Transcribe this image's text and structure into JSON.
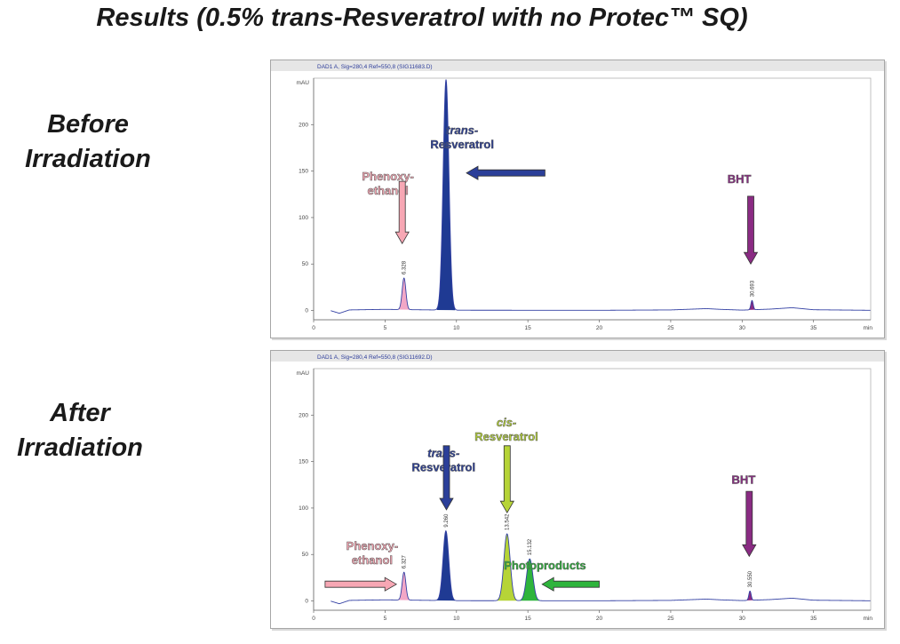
{
  "title": "Results (0.5% trans-Resveratrol with no Protec™ SQ)",
  "chart_data": [
    {
      "type": "line",
      "side_label": [
        "Before",
        "Irradiation"
      ],
      "signal_label": "DAD1 A, Sig=280,4 Ref=550,8 (SIG11683.D)",
      "ylabel": "mAU",
      "xlabel": "min",
      "xlim": [
        0,
        39
      ],
      "ylim": [
        -10,
        250
      ],
      "x_ticks": [
        0,
        5,
        10,
        15,
        20,
        25,
        30,
        35
      ],
      "y_ticks": [
        0,
        50,
        100,
        150,
        200
      ],
      "baseline": [
        [
          1.2,
          -0.2
        ],
        [
          1.8,
          -3
        ],
        [
          2.5,
          0.6
        ],
        [
          5,
          1.2
        ],
        [
          10,
          0.3
        ],
        [
          20,
          0.2
        ],
        [
          25,
          0.6
        ],
        [
          27.5,
          2
        ],
        [
          28.5,
          1.2
        ],
        [
          30,
          0.4
        ],
        [
          32,
          1.5
        ],
        [
          33.5,
          3
        ],
        [
          35,
          0.8
        ],
        [
          39,
          0.2
        ]
      ],
      "peaks": [
        {
          "rt": 6.328,
          "height": 34,
          "width": 0.13,
          "color": "#f2a7c6",
          "label": "6.328"
        },
        {
          "rt": 9.27,
          "height": 248,
          "width": 0.2,
          "color": "#1f3a93",
          "label": ""
        },
        {
          "rt": 30.693,
          "height": 10,
          "width": 0.08,
          "color": "#8a2b83",
          "label": "30.693"
        }
      ],
      "annotations": [
        {
          "lines": [
            "Phenoxy-",
            "ethanol"
          ],
          "color": "#f7a7b4",
          "arrow": "down",
          "tx": 5.2,
          "ty": 140,
          "ax": 6.2,
          "ay_from": 139,
          "ay_to": 72
        },
        {
          "lines": [
            "trans-",
            "Resveratrol"
          ],
          "italic_first": true,
          "color": "#2b3f99",
          "arrow": "left",
          "tx": 10.4,
          "ty": 190,
          "ax_from": 16.2,
          "ax_to": 10.7,
          "ay": 148
        },
        {
          "lines": [
            "BHT"
          ],
          "color": "#8a2b83",
          "arrow": "down",
          "tx": 29.8,
          "ty": 137,
          "ax": 30.6,
          "ay_from": 123,
          "ay_to": 50
        }
      ]
    },
    {
      "type": "line",
      "side_label": [
        "After",
        "Irradiation"
      ],
      "signal_label": "DAD1 A, Sig=280,4 Ref=550,8 (SIG11692.D)",
      "ylabel": "mAU",
      "xlabel": "min",
      "xlim": [
        0,
        39
      ],
      "ylim": [
        -10,
        250
      ],
      "x_ticks": [
        0,
        5,
        10,
        15,
        20,
        25,
        30,
        35
      ],
      "y_ticks": [
        0,
        50,
        100,
        150,
        200
      ],
      "baseline": [
        [
          1.2,
          -0.2
        ],
        [
          1.8,
          -3
        ],
        [
          2.5,
          0.6
        ],
        [
          5,
          1.2
        ],
        [
          10,
          0.3
        ],
        [
          20,
          0.2
        ],
        [
          25,
          0.6
        ],
        [
          27.5,
          2
        ],
        [
          28.5,
          1.2
        ],
        [
          30,
          0.4
        ],
        [
          32,
          1.5
        ],
        [
          33.5,
          3
        ],
        [
          35,
          0.8
        ],
        [
          39,
          0.2
        ]
      ],
      "peaks": [
        {
          "rt": 6.327,
          "height": 30,
          "width": 0.13,
          "color": "#f2a7c6",
          "label": "6.327"
        },
        {
          "rt": 9.26,
          "height": 75,
          "width": 0.2,
          "color": "#1f3a93",
          "label": "9.260"
        },
        {
          "rt": 13.54,
          "height": 72,
          "width": 0.22,
          "color": "#b6d437",
          "label": "13.542"
        },
        {
          "rt": 15.13,
          "height": 45,
          "width": 0.22,
          "color": "#2eb43c",
          "label": "15.132"
        },
        {
          "rt": 30.55,
          "height": 10,
          "width": 0.08,
          "color": "#8a2b83",
          "label": "30.550"
        }
      ],
      "annotations": [
        {
          "lines": [
            "Phenoxy-",
            "ethanol"
          ],
          "color": "#f7a7b4",
          "arrow": "right",
          "tx": 4.1,
          "ty": 55,
          "ax_from": 0.8,
          "ax_to": 5.8,
          "ay": 18
        },
        {
          "lines": [
            "trans-",
            "Resveratrol"
          ],
          "italic_first": true,
          "color": "#2b3f99",
          "arrow": "down",
          "tx": 9.1,
          "ty": 155,
          "ax": 9.3,
          "ay_from": 167,
          "ay_to": 98
        },
        {
          "lines": [
            "cis-",
            "Resveratrol"
          ],
          "italic_first": true,
          "color": "#b6d437",
          "arrow": "down",
          "tx": 13.5,
          "ty": 188,
          "ax": 13.55,
          "ay_from": 167,
          "ay_to": 95
        },
        {
          "lines": [
            "Photoproducts"
          ],
          "color": "#2eb43c",
          "arrow": "left",
          "tx": 16.2,
          "ty": 34,
          "ax_from": 20,
          "ax_to": 16,
          "ay": 18
        },
        {
          "lines": [
            "BHT"
          ],
          "color": "#8a2b83",
          "arrow": "down",
          "tx": 30.1,
          "ty": 126,
          "ax": 30.5,
          "ay_from": 118,
          "ay_to": 48
        }
      ]
    }
  ]
}
